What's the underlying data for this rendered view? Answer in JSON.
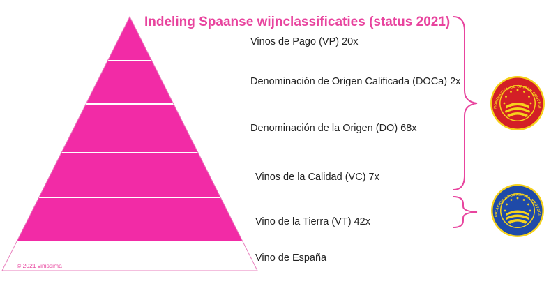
{
  "title": "Indeling Spaanse wijnclassificaties (status 2021)",
  "copyright": "© 2021 vinissima",
  "colors": {
    "accent": "#e8449e",
    "pyramid_fill": "#f22ba6",
    "pyramid_base_fill": "#ffffff",
    "outline": "#e87fbd",
    "dop_seal": "#d31f26",
    "igp_seal": "#1f4aa8",
    "seal_gold": "#f6d21c"
  },
  "levels": [
    {
      "label": "Vinos de Pago (VP) 20x"
    },
    {
      "label": "Denominación de Origen Calificada (DOCa) 2x"
    },
    {
      "label": "Denominación de la Origen (DO) 68x"
    },
    {
      "label": "Vinos de la Calidad (VC) 7x"
    },
    {
      "label": "Vino de la Tierra (VT) 42x"
    },
    {
      "label": "Vino de España"
    }
  ],
  "seals": {
    "dop": {
      "icon": "dop-seal-icon",
      "text": "DENOMINACIÓN DE ORIGEN PROTEGIDA"
    },
    "igp": {
      "icon": "igp-seal-icon",
      "text": "INDICACIÓN GEOGRÁFICA PROTEGIDA"
    }
  }
}
